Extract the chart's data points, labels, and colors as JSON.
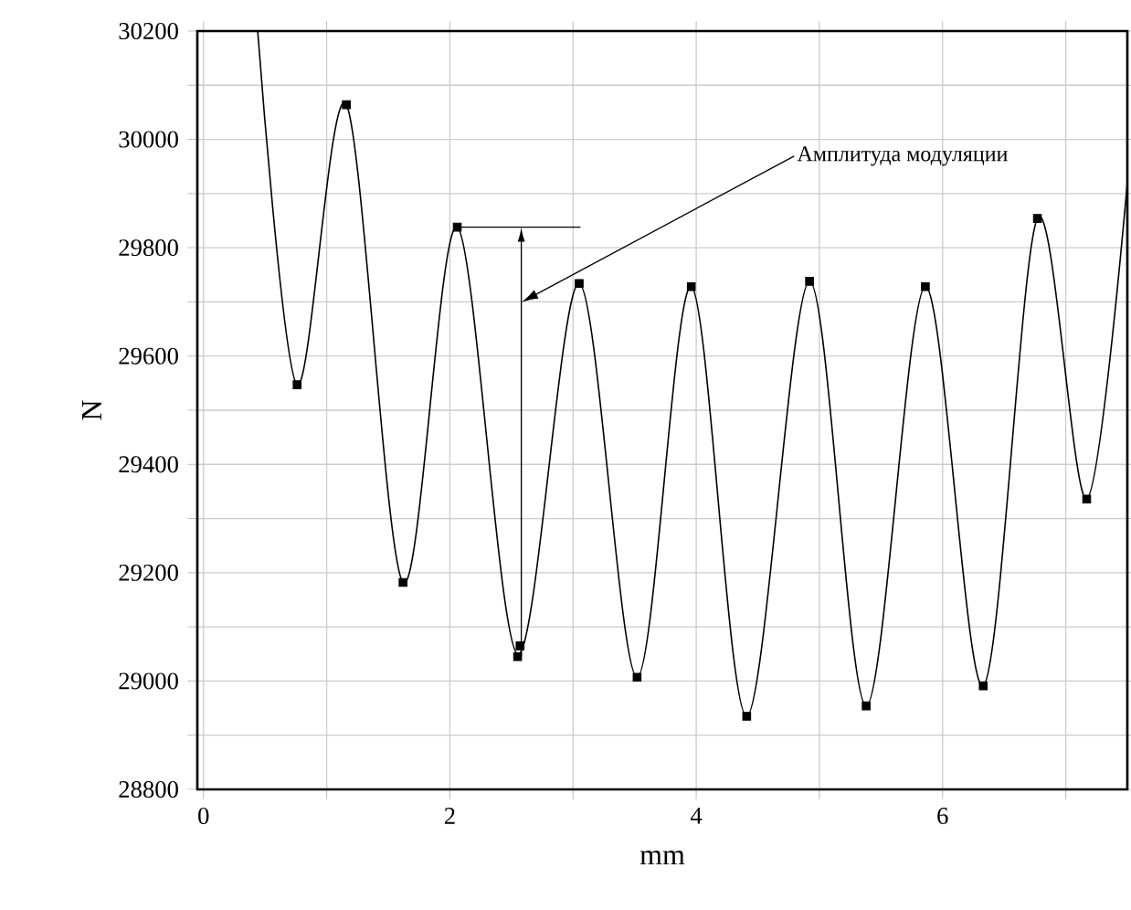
{
  "chart_data": {
    "type": "line",
    "xlabel": "mm",
    "ylabel": "N",
    "xlim": [
      -0.05,
      7.5
    ],
    "ylim": [
      28800,
      30200
    ],
    "xticks": [
      0,
      {
        "value": 1,
        "label": null
      },
      2,
      {
        "value": 3,
        "label": null
      },
      4,
      {
        "value": 5,
        "label": null
      },
      6,
      {
        "value": 7,
        "label": null
      }
    ],
    "yticks": [
      28800,
      {
        "value": 28900,
        "label": null
      },
      29000,
      {
        "value": 29100,
        "label": null
      },
      29200,
      {
        "value": 29300,
        "label": null
      },
      29400,
      {
        "value": 29500,
        "label": null
      },
      29600,
      {
        "value": 29700,
        "label": null
      },
      29800,
      {
        "value": 29900,
        "label": null
      },
      30000,
      {
        "value": 30100,
        "label": null
      },
      30200
    ],
    "grid": true,
    "series": [
      {
        "color": "#000000",
        "marker": "none",
        "x": [
          0.44,
          0.76,
          1.16,
          1.62,
          2.06,
          2.55,
          3.05,
          3.52,
          3.96,
          4.41,
          4.92,
          5.38,
          5.86,
          6.33,
          6.77,
          7.17,
          7.5
        ],
        "values": [
          30200,
          29547,
          30064,
          29182,
          29838,
          29050,
          29734,
          29007,
          29728,
          28935,
          29738,
          28954,
          29728,
          28991,
          29854,
          29336,
          29921
        ]
      },
      {
        "type": "scatter",
        "color": "#000000",
        "marker": "square",
        "x": [
          0.76,
          1.16,
          1.62,
          2.06,
          2.55,
          2.57,
          3.05,
          3.52,
          3.96,
          4.41,
          4.92,
          5.38,
          5.86,
          6.33,
          6.77,
          7.17
        ],
        "values": [
          29547,
          30064,
          29182,
          29838,
          29045,
          29065,
          29734,
          29007,
          29728,
          28935,
          29738,
          28954,
          29728,
          28991,
          29854,
          29336
        ]
      }
    ],
    "ref_lines": [
      {
        "axis": "y",
        "value": 29838,
        "color": "#000000"
      }
    ],
    "annotations": [
      "Амплитуда модуляции"
    ]
  }
}
